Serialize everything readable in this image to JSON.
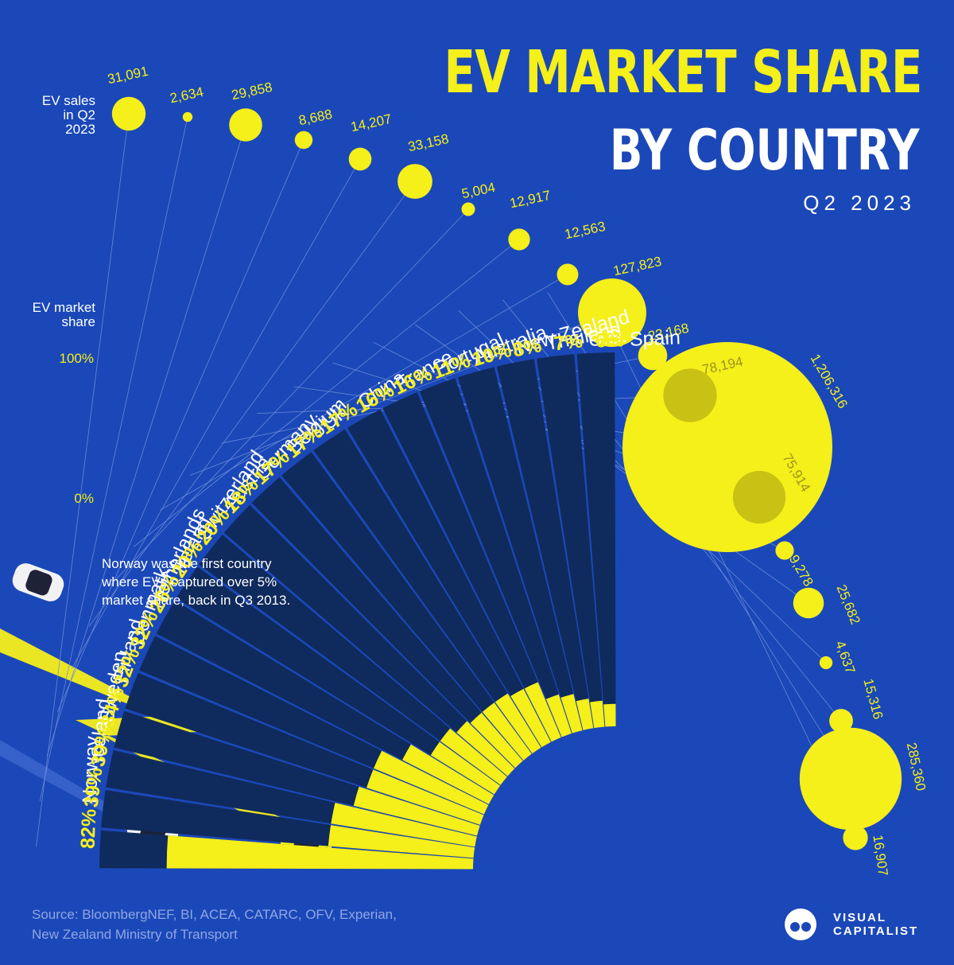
{
  "header": {
    "title": "EV MARKET SHARE",
    "subtitle": "BY COUNTRY",
    "period": "Q2 2023"
  },
  "legend": {
    "sales_label": "EV sales in Q2 2023",
    "share_label": "EV market share"
  },
  "axis": {
    "top_tick": "100%",
    "bottom_tick": "0%"
  },
  "note": "Norway was the first country where EVs captured over 5% market share, back in Q3 2013.",
  "source": "Source: BloombergNEF, BI, ACEA, CATARC, OFV, Experian, New Zealand Ministry of Transport",
  "brand": {
    "line1": "VISUAL",
    "line2": "CAPITALIST"
  },
  "colors": {
    "background": "#1b48b8",
    "track": "#0f2a5c",
    "accent": "#f5ef1a",
    "text": "#ffffff",
    "inner_bubble": "#c9c214"
  },
  "chart_data": {
    "type": "bar",
    "ylim": [
      0,
      100
    ],
    "categories": [
      "Norway",
      "Iceland",
      "Sweden",
      "Finland",
      "Denmark",
      "Netherlands",
      "Ireland",
      "Switzerland",
      "Austria",
      "Germany",
      "Belgium",
      "UK",
      "China",
      "France",
      "Portugal",
      "Australia",
      "New Zealand",
      "Thailand",
      "U.S.",
      "Spain"
    ],
    "series": [
      {
        "name": "EV market share",
        "values": [
          82,
          39,
          39,
          34,
          32,
          32,
          26,
          20,
          20,
          18,
          17,
          17,
          17,
          16,
          16,
          11,
          10,
          8,
          7,
          6
        ],
        "labels": [
          "82%",
          "39%",
          "39%",
          "34%",
          "32%",
          "32%",
          "26%",
          "20%",
          "20%",
          "18%",
          "17%",
          "17%",
          "17%",
          "16%",
          "16%",
          "11%",
          "10%",
          "8%",
          "7%",
          "6%"
        ]
      },
      {
        "name": "EV sales in Q2 2023",
        "values": [
          31091,
          2634,
          29858,
          8688,
          14207,
          33158,
          5004,
          12917,
          12563,
          127823,
          23168,
          78194,
          1206316,
          75914,
          9278,
          25682,
          4637,
          15316,
          285360,
          16907
        ],
        "labels": [
          "31,091",
          "2,634",
          "29,858",
          "8,688",
          "14,207",
          "33,158",
          "5,004",
          "12,917",
          "12,563",
          "127,823",
          "23,168",
          "78,194",
          "1,206,316",
          "75,914",
          "9,278",
          "25,682",
          "4,637",
          "15,316",
          "285,360",
          "16,907"
        ]
      }
    ]
  }
}
